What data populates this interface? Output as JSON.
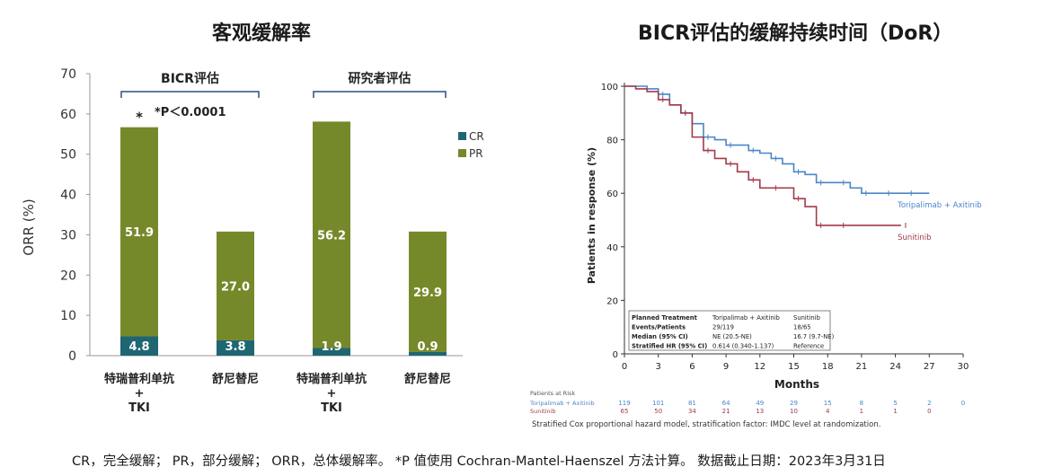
{
  "left_title": "客观缓解率",
  "right_title": "BICR评估的缓解持续时间（DoR）",
  "footnote": "CR，完全缓解； PR，部分缓解； ORR，总体缓解率。 *P 值使用 Cochran-Mantel-Haenszel 方法计算。 数据截止日期：2023年3月31日",
  "colors": {
    "cr": "#1f6673",
    "pr": "#76892a",
    "bracket": "#2c4e8a",
    "toripalimab": "#4a86c8",
    "sunitinib": "#a33a4a"
  },
  "chart_data": [
    {
      "type": "bar",
      "stacked": true,
      "ylabel": "ORR (%)",
      "ylim": [
        0,
        70
      ],
      "yticks": [
        0,
        10,
        20,
        30,
        40,
        50,
        60,
        70
      ],
      "categories": [
        "特瑞普利单抗\n+\nTKI",
        "舒尼替尼",
        "特瑞普利单抗\n+\nTKI",
        "舒尼替尼"
      ],
      "series": [
        {
          "name": "CR",
          "values": [
            4.8,
            3.8,
            1.9,
            0.9
          ],
          "color": "#1f6673"
        },
        {
          "name": "PR",
          "values": [
            51.9,
            27.0,
            56.2,
            29.9
          ],
          "color": "#76892a"
        }
      ],
      "group_labels": [
        "BICR评估",
        "研究者评估"
      ],
      "annotations": {
        "significance_marker": "*",
        "p_value": "*P＜0.0001"
      },
      "legend": "right"
    },
    {
      "type": "line",
      "xlabel": "Months",
      "ylabel": "Patients in response (%)",
      "xlim": [
        0,
        30
      ],
      "ylim": [
        0,
        100
      ],
      "xticks": [
        0,
        3,
        6,
        9,
        12,
        15,
        18,
        21,
        24,
        27,
        30
      ],
      "yticks": [
        0,
        20,
        40,
        60,
        80,
        100
      ],
      "series": [
        {
          "name": "Toripalimab + Axitinib",
          "color": "#4a86c8",
          "points": [
            [
              0,
              100
            ],
            [
              1,
              100
            ],
            [
              2,
              99
            ],
            [
              3,
              97
            ],
            [
              4,
              93
            ],
            [
              5,
              90
            ],
            [
              6,
              86
            ],
            [
              7,
              81
            ],
            [
              8,
              80
            ],
            [
              9,
              78
            ],
            [
              10,
              78
            ],
            [
              11,
              76
            ],
            [
              12,
              75
            ],
            [
              13,
              73
            ],
            [
              14,
              71
            ],
            [
              15,
              68
            ],
            [
              16,
              67
            ],
            [
              17,
              64
            ],
            [
              18,
              64
            ],
            [
              19,
              64
            ],
            [
              20,
              62
            ],
            [
              21,
              60
            ],
            [
              22,
              60
            ],
            [
              23,
              60
            ],
            [
              24,
              60
            ],
            [
              25,
              60
            ],
            [
              27,
              60
            ]
          ]
        },
        {
          "name": "Sunitinib",
          "color": "#a33a4a",
          "points": [
            [
              0,
              100
            ],
            [
              1,
              99
            ],
            [
              2,
              98
            ],
            [
              3,
              95
            ],
            [
              4,
              93
            ],
            [
              5,
              90
            ],
            [
              6,
              81
            ],
            [
              7,
              76
            ],
            [
              8,
              73
            ],
            [
              9,
              71
            ],
            [
              10,
              68
            ],
            [
              11,
              65
            ],
            [
              12,
              62
            ],
            [
              13,
              62
            ],
            [
              14,
              62
            ],
            [
              15,
              58
            ],
            [
              16,
              55
            ],
            [
              17,
              48
            ],
            [
              18,
              48
            ],
            [
              19,
              48
            ],
            [
              20,
              48
            ],
            [
              24.5,
              48
            ]
          ]
        }
      ],
      "series_labels": [
        "Toripalimab + Axitinib",
        "Sunitinib"
      ],
      "stats_table": {
        "headers": [
          "Planned Treatment",
          "Toripalimab + Axitinib",
          "Sunitinib"
        ],
        "rows": [
          [
            "Events/Patients",
            "29/119",
            "18/65"
          ],
          [
            "Median (95% CI)",
            "NE (20.5-NE)",
            "16.7 (9.7-NE)"
          ],
          [
            "Stratified HR (95% CI)",
            "0.614 (0.340-1.137)",
            "Reference"
          ]
        ]
      },
      "risk_table": {
        "title": "Patients at Risk",
        "rows": [
          {
            "label": "Toripalimab + Axitinib",
            "values": [
              "119",
              "101",
              "81",
              "64",
              "49",
              "29",
              "15",
              "8",
              "5",
              "2",
              "0"
            ]
          },
          {
            "label": "Sunitinib",
            "values": [
              "65",
              "50",
              "34",
              "21",
              "13",
              "10",
              "4",
              "1",
              "1",
              "0",
              ""
            ]
          }
        ]
      },
      "footnote": "Stratified Cox proportional hazard model, stratification factor: IMDC level at randomization."
    }
  ]
}
